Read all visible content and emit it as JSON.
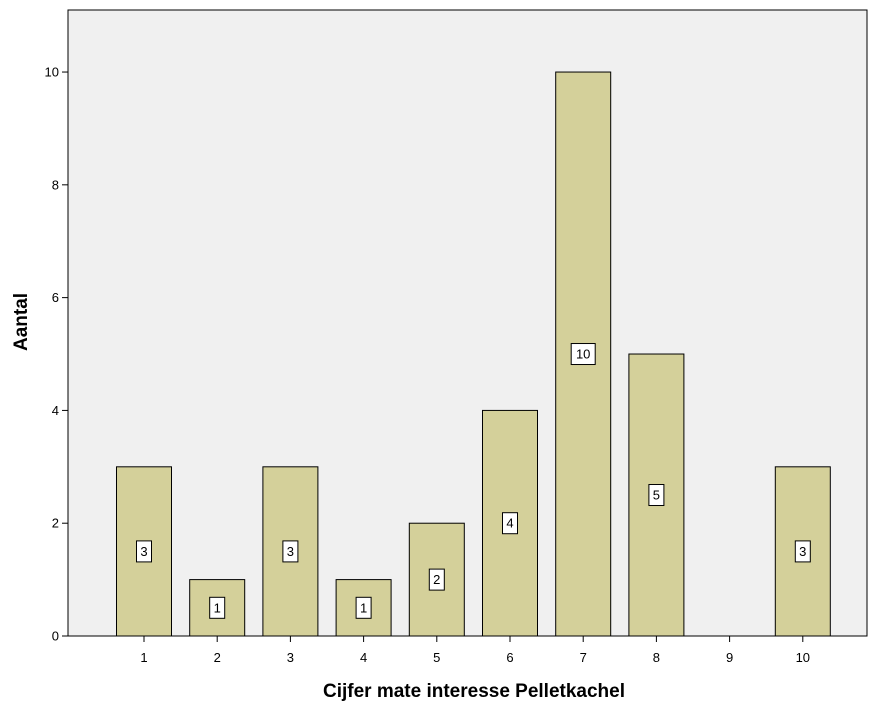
{
  "chart_data": {
    "type": "bar",
    "title": "",
    "xlabel": "Cijfer mate interesse Pelletkachel",
    "ylabel": "Aantal",
    "categories": [
      "1",
      "2",
      "3",
      "4",
      "5",
      "6",
      "7",
      "8",
      "9",
      "10"
    ],
    "values": [
      3,
      1,
      3,
      1,
      2,
      4,
      10,
      5,
      0,
      3
    ],
    "data_labels": [
      "3",
      "1",
      "3",
      "1",
      "2",
      "4",
      "10",
      "5",
      "",
      "3"
    ],
    "y_ticks": [
      "0",
      "2",
      "4",
      "6",
      "8",
      "10"
    ],
    "ylim": [
      0,
      11.1
    ],
    "grid": false,
    "colors": {
      "bar_fill": "#d4d09a",
      "bar_stroke": "#000000",
      "plot_background": "#f0f0f0",
      "label_box": "#ffffff"
    }
  }
}
